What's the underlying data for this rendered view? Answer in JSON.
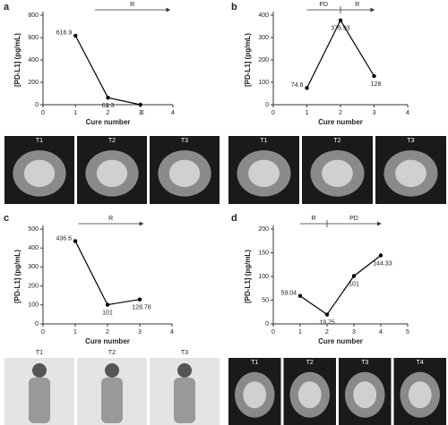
{
  "chart_data": [
    {
      "type": "line",
      "panel": "a",
      "phases": [
        "R"
      ],
      "ylabel": "[PD-L1] (pg/mL)",
      "xlabel": "Cure number",
      "x": [
        1,
        2,
        3
      ],
      "values": [
        616.9,
        62.3,
        0
      ],
      "color": "#000000",
      "xlim": [
        0,
        4
      ],
      "xticks": [
        0,
        1,
        2,
        3,
        4
      ],
      "ylim": [
        0,
        800
      ],
      "yticks": [
        0,
        200,
        400,
        600,
        800
      ],
      "image_labels": [
        "T1",
        "T2",
        "T3"
      ]
    },
    {
      "type": "line",
      "panel": "b",
      "phases": [
        "PD",
        "R"
      ],
      "ylabel": "[PD-L1] (pg/mL)",
      "xlabel": "Cure number",
      "x": [
        1,
        2,
        3
      ],
      "values": [
        74.6,
        376.93,
        128
      ],
      "color": "#000000",
      "xlim": [
        0,
        4
      ],
      "xticks": [
        0,
        1,
        2,
        3,
        4
      ],
      "ylim": [
        0,
        400
      ],
      "yticks": [
        0,
        100,
        200,
        300,
        400
      ],
      "image_labels": [
        "T1",
        "T2",
        "T3"
      ]
    },
    {
      "type": "line",
      "panel": "c",
      "phases": [
        "R"
      ],
      "ylabel": "[PD-L1] (pg/mL)",
      "xlabel": "Cure number",
      "x": [
        1,
        2,
        3
      ],
      "values": [
        436.6,
        101,
        128.78
      ],
      "color": "#000000",
      "xlim": [
        0,
        4
      ],
      "xticks": [
        0,
        1,
        2,
        3,
        4
      ],
      "ylim": [
        0,
        500
      ],
      "yticks": [
        0,
        100,
        200,
        300,
        400,
        500
      ],
      "image_labels": [
        "T1",
        "T2",
        "T3"
      ]
    },
    {
      "type": "line",
      "panel": "d",
      "phases": [
        "R",
        "PD"
      ],
      "ylabel": "[PD-L1] (pg/mL)",
      "xlabel": "Cure number",
      "x": [
        1,
        2,
        3,
        4
      ],
      "values": [
        59.04,
        19.75,
        101,
        144.33
      ],
      "color": "#000000",
      "xlim": [
        0,
        5
      ],
      "xticks": [
        0,
        1,
        2,
        3,
        4,
        5
      ],
      "ylim": [
        0,
        200
      ],
      "yticks": [
        0,
        50,
        100,
        150,
        200
      ],
      "image_labels": [
        "T1",
        "T2",
        "T3",
        "T4"
      ]
    }
  ]
}
